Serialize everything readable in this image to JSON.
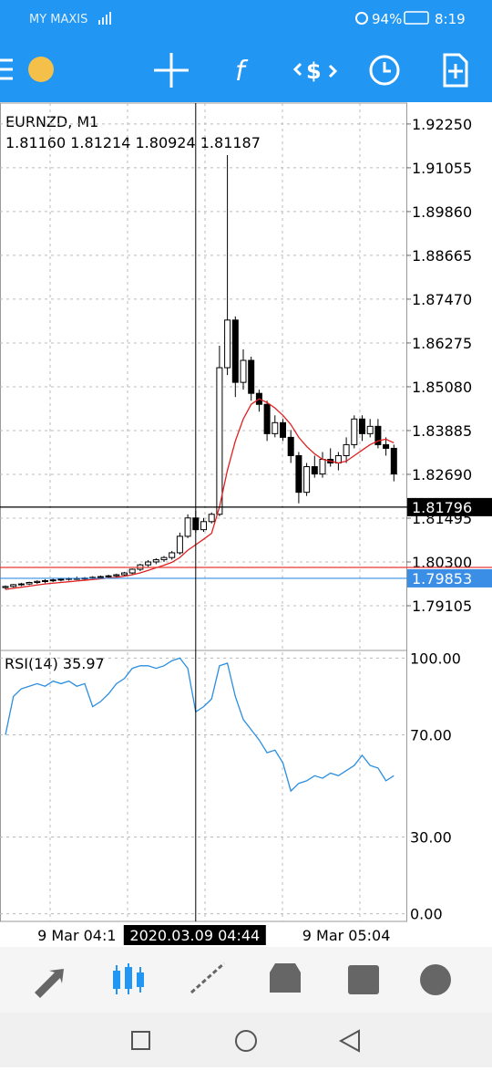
{
  "status_bar": {
    "carrier": "MY MAXIS",
    "battery": "94%",
    "time": "8:19"
  },
  "chart_data": {
    "type": "candlestick",
    "title": "EURNZD, M1",
    "subtitle": "1.81160 1.81214 1.80924 1.81187",
    "open": [
      1.796,
      1.7963,
      1.7968,
      1.797,
      1.7974,
      1.7977,
      1.7979,
      1.7981,
      1.7983,
      1.7985,
      1.7984,
      1.7986,
      1.7988,
      1.799,
      1.7992,
      1.7995,
      1.8,
      1.801,
      1.8022,
      1.803,
      1.8036,
      1.8042,
      1.8055,
      1.81,
      1.815,
      1.8118,
      1.814,
      1.816,
      1.856,
      1.869,
      1.852,
      1.858,
      1.849,
      1.846,
      1.838,
      1.841,
      1.837,
      1.832,
      1.822,
      1.829,
      1.827,
      1.831,
      1.83,
      1.832,
      1.835,
      1.842,
      1.838,
      1.84,
      1.835,
      1.834
    ],
    "high": [
      1.7966,
      1.797,
      1.7973,
      1.7976,
      1.798,
      1.7983,
      1.7984,
      1.7986,
      1.7988,
      1.799,
      1.7989,
      1.7991,
      1.7993,
      1.7995,
      1.7998,
      1.8003,
      1.8012,
      1.8025,
      1.8035,
      1.804,
      1.8046,
      1.806,
      1.811,
      1.816,
      1.817,
      1.815,
      1.8165,
      1.862,
      1.914,
      1.87,
      1.861,
      1.859,
      1.85,
      1.847,
      1.843,
      1.842,
      1.839,
      1.833,
      1.83,
      1.832,
      1.833,
      1.834,
      1.833,
      1.837,
      1.843,
      1.843,
      1.842,
      1.842,
      1.837,
      1.835
    ],
    "low": [
      1.7955,
      1.796,
      1.7964,
      1.7967,
      1.797,
      1.7972,
      1.7975,
      1.7977,
      1.7979,
      1.7981,
      1.798,
      1.7982,
      1.7984,
      1.7986,
      1.7988,
      1.7991,
      1.7996,
      1.8005,
      1.8016,
      1.8024,
      1.803,
      1.8036,
      1.805,
      1.8095,
      1.811,
      1.8112,
      1.8135,
      1.8155,
      1.854,
      1.848,
      1.85,
      1.847,
      1.844,
      1.836,
      1.837,
      1.836,
      1.83,
      1.819,
      1.821,
      1.826,
      1.826,
      1.829,
      1.828,
      1.83,
      1.834,
      1.836,
      1.837,
      1.834,
      1.832,
      1.825
    ],
    "close": [
      1.7963,
      1.7968,
      1.797,
      1.7974,
      1.7977,
      1.7979,
      1.7981,
      1.7983,
      1.7985,
      1.7984,
      1.7986,
      1.7988,
      1.799,
      1.7992,
      1.7995,
      1.8,
      1.801,
      1.8022,
      1.803,
      1.8036,
      1.8042,
      1.8055,
      1.81,
      1.815,
      1.8118,
      1.814,
      1.816,
      1.856,
      1.869,
      1.852,
      1.858,
      1.849,
      1.846,
      1.838,
      1.841,
      1.837,
      1.832,
      1.822,
      1.829,
      1.827,
      1.831,
      1.83,
      1.832,
      1.835,
      1.842,
      1.838,
      1.84,
      1.835,
      1.834,
      1.827
    ],
    "ma": {
      "color": "#e02020",
      "values": [
        1.7955,
        1.7958,
        1.7961,
        1.7964,
        1.7967,
        1.797,
        1.7972,
        1.7974,
        1.7976,
        1.7978,
        1.798,
        1.7982,
        1.7984,
        1.7986,
        1.7988,
        1.7991,
        1.7995,
        1.8,
        1.8007,
        1.8014,
        1.8021,
        1.8029,
        1.8042,
        1.8062,
        1.8077,
        1.8092,
        1.8108,
        1.818,
        1.828,
        1.836,
        1.842,
        1.846,
        1.8475,
        1.8465,
        1.845,
        1.843,
        1.8405,
        1.837,
        1.8345,
        1.8325,
        1.831,
        1.8305,
        1.83,
        1.8305,
        1.832,
        1.8335,
        1.835,
        1.836,
        1.8365,
        1.8355
      ]
    },
    "ylim": [
      1.7791,
      1.9282
    ],
    "yticks": [
      {
        "value": 1.9225,
        "label": "1.92250"
      },
      {
        "value": 1.91055,
        "label": "1.91055"
      },
      {
        "value": 1.8986,
        "label": "1.89860"
      },
      {
        "value": 1.88665,
        "label": "1.88665"
      },
      {
        "value": 1.8747,
        "label": "1.87470"
      },
      {
        "value": 1.86275,
        "label": "1.86275"
      },
      {
        "value": 1.8508,
        "label": "1.85080"
      },
      {
        "value": 1.83885,
        "label": "1.83885"
      },
      {
        "value": 1.8269,
        "label": "1.82690"
      },
      {
        "value": 1.81495,
        "label": "1.81495"
      },
      {
        "value": 1.803,
        "label": "1.80300"
      },
      {
        "value": 1.79105,
        "label": "1.79105"
      }
    ],
    "price_lines": [
      {
        "value": 1.8015,
        "color": "#e53935"
      },
      {
        "value": 1.79853,
        "label": "1.79853",
        "color": "#3a8ee6"
      },
      {
        "value": 1.81796,
        "label": "1.81796",
        "color": "#000000"
      }
    ],
    "crosshair": {
      "x": 24,
      "label": "2020.03.09 04:44"
    },
    "xticks": [
      {
        "value": 9,
        "label": "9 Mar 04:1"
      },
      {
        "value": 43,
        "label": "9 Mar 05:04"
      }
    ],
    "rsi": {
      "title": "RSI(14) 35.97",
      "color": "#2a8ee0",
      "ylim": [
        -3,
        103
      ],
      "yticks": [
        {
          "value": 100,
          "label": "100.00"
        },
        {
          "value": 70,
          "label": "70.00"
        },
        {
          "value": 30,
          "label": "30.00"
        },
        {
          "value": 0,
          "label": "0.00"
        }
      ],
      "values": [
        70,
        85,
        88,
        89,
        90,
        89,
        91,
        90,
        91,
        89,
        90,
        81,
        83,
        86,
        90,
        92,
        96,
        97,
        97,
        96,
        97,
        99,
        100,
        96,
        79,
        81,
        84,
        97,
        98,
        85,
        76,
        72,
        68,
        63,
        64,
        59,
        48,
        51,
        52,
        54,
        53,
        55,
        54,
        56,
        58,
        62,
        58,
        57,
        52,
        54
      ]
    }
  }
}
